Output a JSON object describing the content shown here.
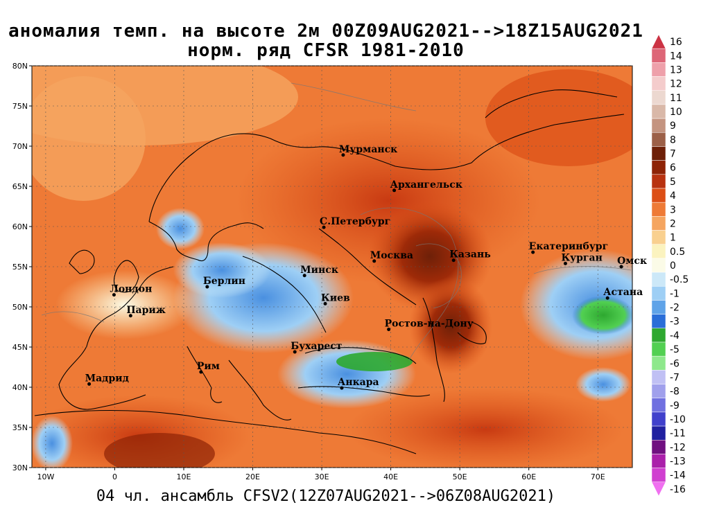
{
  "title": {
    "line1": "аномалия темп. на высоте 2м 00Z09AUG2021-->18Z15AUG2021",
    "line2": "норм. ряд CFSR 1981-2010"
  },
  "footer": "04 чл. ансамбль CFSV2(12Z07AUG2021-->06Z08AUG2021)",
  "map": {
    "lon_range": [
      -12,
      75
    ],
    "lat_range": [
      30,
      80
    ],
    "lat_ticks": [
      {
        "v": 80,
        "label": "80N"
      },
      {
        "v": 75,
        "label": "75N"
      },
      {
        "v": 70,
        "label": "70N"
      },
      {
        "v": 65,
        "label": "65N"
      },
      {
        "v": 60,
        "label": "60N"
      },
      {
        "v": 55,
        "label": "55N"
      },
      {
        "v": 50,
        "label": "50N"
      },
      {
        "v": 45,
        "label": "45N"
      },
      {
        "v": 40,
        "label": "40N"
      },
      {
        "v": 35,
        "label": "35N"
      },
      {
        "v": 30,
        "label": "30N"
      }
    ],
    "lon_ticks": [
      {
        "v": -10,
        "label": "10W"
      },
      {
        "v": 0,
        "label": "0"
      },
      {
        "v": 10,
        "label": "10E"
      },
      {
        "v": 20,
        "label": "20E"
      },
      {
        "v": 30,
        "label": "30E"
      },
      {
        "v": 40,
        "label": "40E"
      },
      {
        "v": 50,
        "label": "50E"
      },
      {
        "v": 60,
        "label": "60E"
      },
      {
        "v": 70,
        "label": "70E"
      }
    ],
    "cities": [
      {
        "name": "Мурманск",
        "lon": 33.1,
        "lat": 68.9
      },
      {
        "name": "Архангельск",
        "lon": 40.5,
        "lat": 64.5
      },
      {
        "name": "С.Петербург",
        "lon": 30.3,
        "lat": 59.9
      },
      {
        "name": "Москва",
        "lon": 37.6,
        "lat": 55.7
      },
      {
        "name": "Казань",
        "lon": 49.1,
        "lat": 55.8
      },
      {
        "name": "Екатеринбург",
        "lon": 60.6,
        "lat": 56.8
      },
      {
        "name": "Курган",
        "lon": 65.3,
        "lat": 55.4
      },
      {
        "name": "Омск",
        "lon": 73.4,
        "lat": 55.0
      },
      {
        "name": "Астана",
        "lon": 71.4,
        "lat": 51.1
      },
      {
        "name": "Минск",
        "lon": 27.5,
        "lat": 53.9
      },
      {
        "name": "Берлин",
        "lon": 13.4,
        "lat": 52.5
      },
      {
        "name": "Лондон",
        "lon": -0.1,
        "lat": 51.5
      },
      {
        "name": "Париж",
        "lon": 2.3,
        "lat": 48.9
      },
      {
        "name": "Киев",
        "lon": 30.5,
        "lat": 50.4
      },
      {
        "name": "Ростов-на-Дону",
        "lon": 39.7,
        "lat": 47.2
      },
      {
        "name": "Бухарест",
        "lon": 26.1,
        "lat": 44.4
      },
      {
        "name": "Мадрид",
        "lon": -3.7,
        "lat": 40.4
      },
      {
        "name": "Рим",
        "lon": 12.5,
        "lat": 41.9
      },
      {
        "name": "Анкара",
        "lon": 32.9,
        "lat": 39.9
      }
    ]
  },
  "legend": {
    "labels": [
      "16",
      "14",
      "13",
      "12",
      "11",
      "10",
      "9",
      "8",
      "7",
      "6",
      "5",
      "4",
      "3",
      "2",
      "1",
      "0.5",
      "0",
      "-0.5",
      "-1",
      "-2",
      "-3",
      "-4",
      "-5",
      "-6",
      "-7",
      "-8",
      "-9",
      "-10",
      "-11",
      "-12",
      "-13",
      "-14",
      "-16"
    ],
    "colors": [
      "#cc3344",
      "#dd6677",
      "#eea0aa",
      "#f4cccc",
      "#ecd8d0",
      "#d9b8a8",
      "#c49480",
      "#9c6048",
      "#6e2008",
      "#8e2306",
      "#b83210",
      "#dc4f16",
      "#ee7a36",
      "#f5a560",
      "#f9d08f",
      "#fbf3bf",
      "#fbfbe7",
      "#cce8f8",
      "#9ecff5",
      "#5fa3e8",
      "#2a6ed8",
      "#2ea830",
      "#52d052",
      "#8ee88c",
      "#c0c0f4",
      "#a0a0ec",
      "#7070e0",
      "#4040cc",
      "#2020a0",
      "#701080",
      "#aa20aa",
      "#d040d0",
      "#f070f0"
    ]
  }
}
